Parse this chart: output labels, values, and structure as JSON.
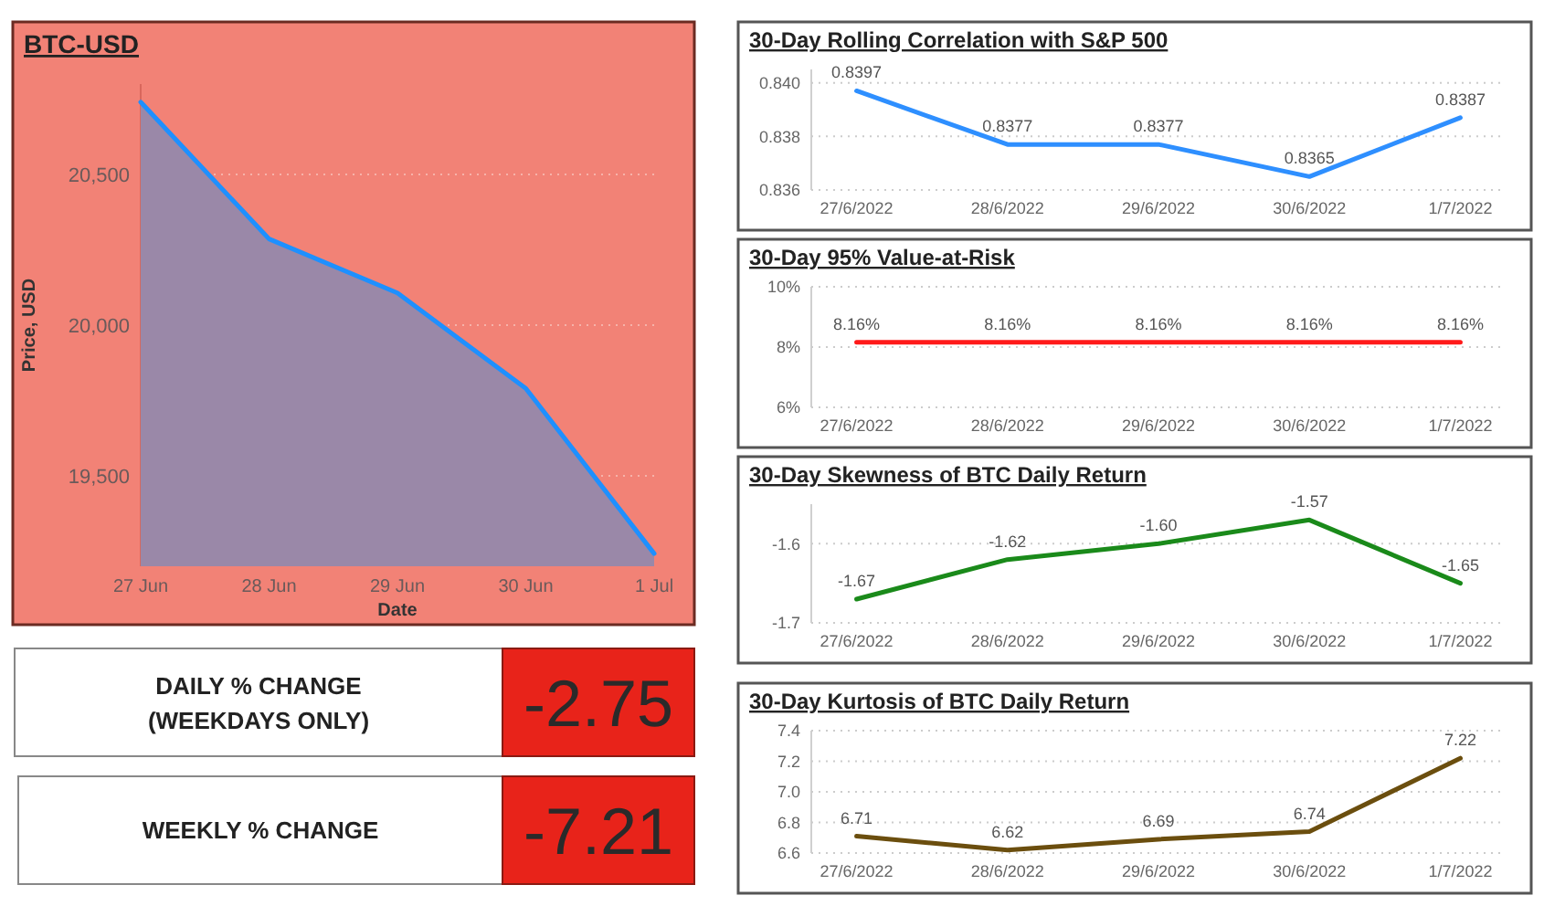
{
  "chart_data": [
    {
      "type": "area",
      "title": "BTC-USD",
      "xlabel": "Date",
      "ylabel": "Price, USD",
      "categories": [
        "27 Jun",
        "28 Jun",
        "29 Jun",
        "30 Jun",
        "1 Jul"
      ],
      "series": [
        {
          "color": "#1e90ff",
          "values": [
            20740,
            20286,
            20107,
            19790,
            19242
          ]
        }
      ],
      "ylim": [
        19200,
        20800
      ],
      "yticks": [
        {
          "value": 19500,
          "label": "19,500"
        },
        {
          "value": 20000,
          "label": "20,000"
        },
        {
          "value": 20500,
          "label": "20,500"
        }
      ],
      "grid": "y"
    },
    {
      "type": "other",
      "title": "DAILY % CHANGE (WEEKDAYS ONLY)",
      "values": [
        -2.75
      ],
      "colors": [
        "#e8231a"
      ],
      "data_labels": true
    },
    {
      "type": "other",
      "title": "WEEKLY % CHANGE",
      "values": [
        -7.21
      ],
      "colors": [
        "#e8231a"
      ],
      "data_labels": true
    },
    {
      "type": "line",
      "title": "30-Day Rolling Correlation with S&P 500",
      "categories": [
        "27/6/2022",
        "28/6/2022",
        "29/6/2022",
        "30/6/2022",
        "1/7/2022"
      ],
      "series": [
        {
          "color": "#2e8fff",
          "values": [
            0.8397,
            0.8377,
            0.8377,
            0.8365,
            0.8387
          ]
        }
      ],
      "ylim": [
        0.836,
        0.8405
      ],
      "yticks": [
        0.836,
        0.838,
        {
          "value": 0.84,
          "label": "0.840"
        }
      ],
      "grid": "y",
      "data_labels": true
    },
    {
      "type": "line",
      "title": "30-Day 95% Value-at-Risk",
      "categories": [
        "27/6/2022",
        "28/6/2022",
        "29/6/2022",
        "30/6/2022",
        "1/7/2022"
      ],
      "series": [
        {
          "color": "#ff1a1a",
          "values": [
            8.16,
            8.16,
            8.16,
            8.16,
            8.16
          ],
          "value_labels": [
            "8.16%",
            "8.16%",
            "8.16%",
            "8.16%",
            "8.16%"
          ]
        }
      ],
      "ylim": [
        6,
        10
      ],
      "yticks": [
        {
          "value": 6,
          "label": "6%"
        },
        {
          "value": 8,
          "label": "8%"
        },
        {
          "value": 10,
          "label": "10%"
        }
      ],
      "grid": "y"
    },
    {
      "type": "line",
      "title": "30-Day Skewness of BTC Daily Return",
      "categories": [
        "27/6/2022",
        "28/6/2022",
        "29/6/2022",
        "30/6/2022",
        "1/7/2022"
      ],
      "series": [
        {
          "color": "#1a8a1a",
          "values": [
            -1.67,
            -1.62,
            -1.6,
            -1.57,
            -1.65
          ],
          "value_labels": [
            "-1.67",
            "-1.62",
            "-1.60",
            "-1.57",
            "-1.65"
          ]
        }
      ],
      "ylim": [
        -1.7,
        -1.55
      ],
      "yticks": [
        -1.7,
        -1.6
      ],
      "grid": "y"
    },
    {
      "type": "line",
      "title": "30-Day Kurtosis of BTC Daily Return",
      "categories": [
        "27/6/2022",
        "28/6/2022",
        "29/6/2022",
        "30/6/2022",
        "1/7/2022"
      ],
      "series": [
        {
          "color": "#6b4e0e",
          "values": [
            6.71,
            6.62,
            6.69,
            6.74,
            7.22
          ]
        }
      ],
      "ylim": [
        6.6,
        7.4
      ],
      "yticks": [
        6.6,
        6.8,
        {
          "value": 7,
          "label": "7.0"
        },
        7.2,
        7.4
      ],
      "grid": "y",
      "data_labels": true
    }
  ]
}
